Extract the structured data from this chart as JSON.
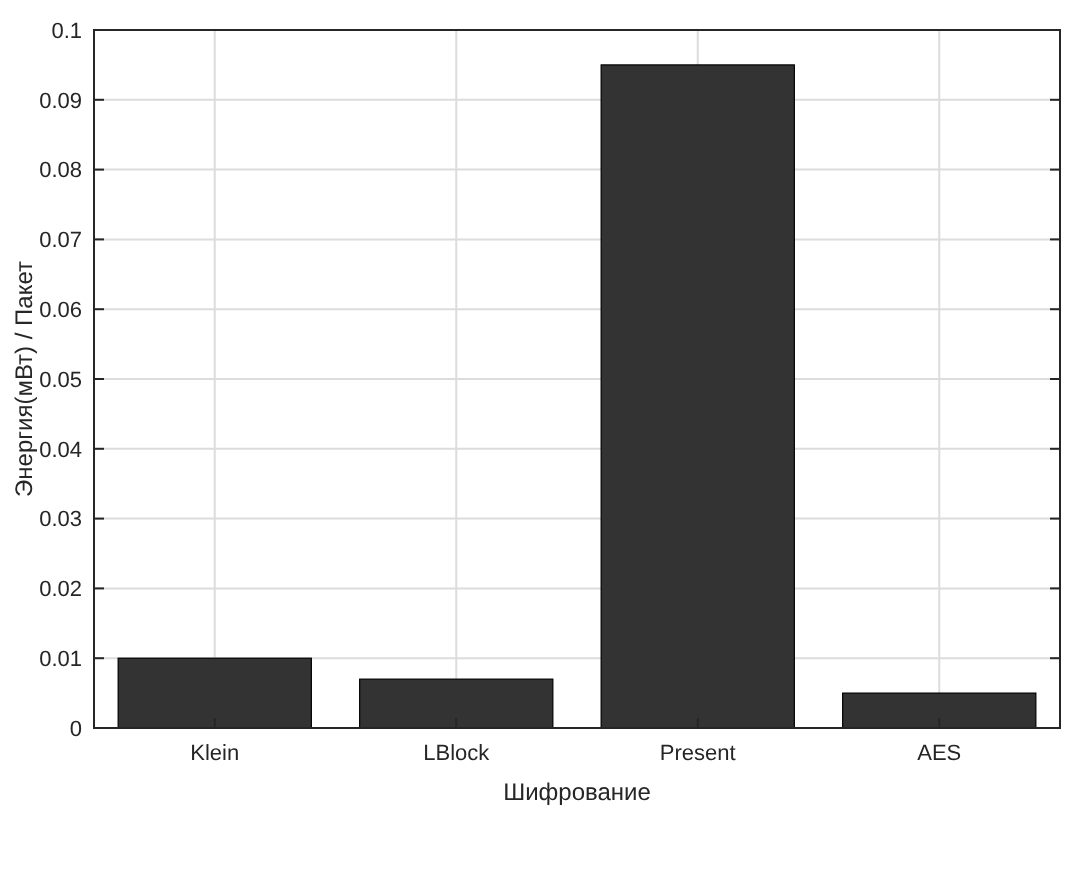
{
  "chart_data": {
    "type": "bar",
    "xlabel": "Шифрование",
    "ylabel": "Энергия(мВт) / Пакет",
    "categories": [
      "Klein",
      "LBlock",
      "Present",
      "AES"
    ],
    "values": [
      0.01,
      0.007,
      0.095,
      0.005
    ],
    "color": "#333333",
    "ylim": [
      0,
      0.1
    ],
    "yticks": [
      0,
      0.01,
      0.02,
      0.03,
      0.04,
      0.05,
      0.06,
      0.07,
      0.08,
      0.09,
      0.1
    ],
    "grid": true
  }
}
